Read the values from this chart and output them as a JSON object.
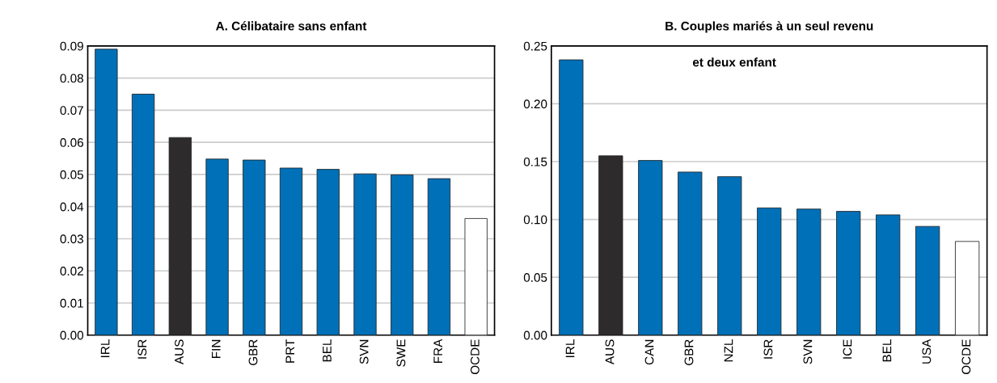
{
  "chart_data": [
    {
      "type": "bar",
      "title": "A. Célibataire sans enfant",
      "categories": [
        "IRL",
        "ISR",
        "AUS",
        "FIN",
        "GBR",
        "PRT",
        "BEL",
        "SVN",
        "SWE",
        "FRA",
        "OCDE"
      ],
      "values": [
        0.089,
        0.075,
        0.0615,
        0.0548,
        0.0545,
        0.052,
        0.0516,
        0.0502,
        0.0499,
        0.0487,
        0.0363
      ],
      "colors": [
        "#0070b8",
        "#0070b8",
        "#2d2b2b",
        "#0070b8",
        "#0070b8",
        "#0070b8",
        "#0070b8",
        "#0070b8",
        "#0070b8",
        "#0070b8",
        "#ffffff"
      ],
      "ylim": [
        0,
        0.09
      ],
      "yticks": [
        {
          "value": 0,
          "label": "0.00"
        },
        {
          "value": 0.01,
          "label": "0.01"
        },
        {
          "value": 0.02,
          "label": "0.02"
        },
        {
          "value": 0.03,
          "label": "0.03"
        },
        {
          "value": 0.04,
          "label": "0.04"
        },
        {
          "value": 0.05,
          "label": "0.05"
        },
        {
          "value": 0.06,
          "label": "0.06"
        },
        {
          "value": 0.07,
          "label": "0.07"
        },
        {
          "value": 0.08,
          "label": "0.08"
        },
        {
          "value": 0.09,
          "label": "0.09"
        }
      ],
      "grid": "y"
    },
    {
      "type": "bar",
      "title": "B. Couples mariés à un seul revenu",
      "annotations": [
        "et deux enfant"
      ],
      "categories": [
        "IRL",
        "AUS",
        "CAN",
        "GBR",
        "NZL",
        "ISR",
        "SVN",
        "ICE",
        "BEL",
        "USA",
        "OCDE"
      ],
      "values": [
        0.238,
        0.155,
        0.151,
        0.141,
        0.137,
        0.11,
        0.109,
        0.107,
        0.104,
        0.094,
        0.081
      ],
      "colors": [
        "#0070b8",
        "#2d2b2b",
        "#0070b8",
        "#0070b8",
        "#0070b8",
        "#0070b8",
        "#0070b8",
        "#0070b8",
        "#0070b8",
        "#0070b8",
        "#ffffff"
      ],
      "ylim": [
        0,
        0.25
      ],
      "yticks": [
        {
          "value": 0,
          "label": "0.00"
        },
        {
          "value": 0.05,
          "label": "0.05"
        },
        {
          "value": 0.1,
          "label": "0.10"
        },
        {
          "value": 0.15,
          "label": "0.15"
        },
        {
          "value": 0.2,
          "label": "0.20"
        },
        {
          "value": 0.25,
          "label": "0.25"
        }
      ],
      "grid": "y"
    }
  ]
}
